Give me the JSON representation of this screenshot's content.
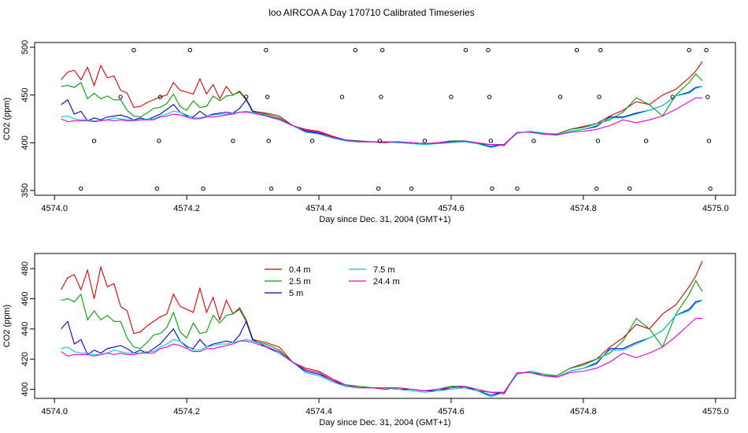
{
  "title": "loo AIRCOA A  Day 170710  Calibrated Timeseries",
  "chart_data": [
    {
      "type": "scatter",
      "xlabel": "Day since Dec. 31, 2004 (GMT+1)",
      "ylabel": "CO2 (ppm)",
      "xlim": [
        4573.97,
        4575.03
      ],
      "ylim": [
        345,
        505
      ],
      "xticks": [
        4574.0,
        4574.2,
        4574.4,
        4574.6,
        4574.8,
        4575.0
      ],
      "xtick_labels": [
        "4574.0",
        "4574.2",
        "4574.4",
        "4574.6",
        "4574.8",
        "4575.0"
      ],
      "yticks": [
        350,
        400,
        450,
        500
      ],
      "ytick_labels": [
        "350",
        "400",
        "450",
        "500"
      ],
      "grid": false,
      "series": [
        {
          "color": "#dd0000",
          "x": [
            4574.01,
            4574.02,
            4574.03,
            4574.04,
            4574.05,
            4574.06,
            4574.07,
            4574.08,
            4574.09,
            4574.1,
            4574.11,
            4574.12,
            4574.13,
            4574.14,
            4574.15,
            4574.16,
            4574.17,
            4574.18,
            4574.19,
            4574.2,
            4574.21,
            4574.22,
            4574.23,
            4574.24,
            4574.25,
            4574.26,
            4574.27,
            4574.28,
            4574.29,
            4574.3,
            4574.32,
            4574.34,
            4574.36,
            4574.38,
            4574.4,
            4574.42,
            4574.44,
            4574.46,
            4574.48,
            4574.5,
            4574.52,
            4574.54,
            4574.56,
            4574.58,
            4574.6,
            4574.62,
            4574.64,
            4574.66,
            4574.68,
            4574.7,
            4574.72,
            4574.74,
            4574.76,
            4574.78,
            4574.8,
            4574.82,
            4574.84,
            4574.86,
            4574.88,
            4574.9,
            4574.92,
            4574.94,
            4574.96,
            4574.97,
            4574.98
          ],
          "y": [
            466,
            474,
            476,
            466,
            479,
            460,
            481,
            468,
            470,
            455,
            452,
            437,
            438,
            442,
            445,
            448,
            450,
            463,
            455,
            453,
            451,
            467,
            451,
            461,
            446,
            459,
            450,
            454,
            446,
            433,
            431,
            428,
            418,
            414,
            412,
            407,
            403,
            402,
            401,
            400,
            401,
            400,
            399,
            400,
            402,
            401,
            399,
            398,
            397,
            411,
            411,
            409,
            409,
            414,
            417,
            420,
            428,
            434,
            443,
            440,
            450,
            456,
            468,
            475,
            485
          ]
        },
        {
          "color": "#00a000",
          "x": [
            4574.01,
            4574.02,
            4574.03,
            4574.04,
            4574.05,
            4574.06,
            4574.07,
            4574.08,
            4574.09,
            4574.1,
            4574.11,
            4574.12,
            4574.13,
            4574.14,
            4574.15,
            4574.16,
            4574.17,
            4574.18,
            4574.19,
            4574.2,
            4574.21,
            4574.22,
            4574.23,
            4574.24,
            4574.25,
            4574.26,
            4574.27,
            4574.28,
            4574.29,
            4574.3,
            4574.32,
            4574.34,
            4574.36,
            4574.38,
            4574.4,
            4574.42,
            4574.44,
            4574.46,
            4574.48,
            4574.5,
            4574.52,
            4574.54,
            4574.56,
            4574.58,
            4574.6,
            4574.62,
            4574.64,
            4574.66,
            4574.68,
            4574.7,
            4574.72,
            4574.74,
            4574.76,
            4574.78,
            4574.8,
            4574.82,
            4574.84,
            4574.86,
            4574.88,
            4574.9,
            4574.92,
            4574.94,
            4574.96,
            4574.97,
            4574.98
          ],
          "y": [
            459,
            460,
            458,
            463,
            446,
            452,
            446,
            449,
            445,
            445,
            434,
            428,
            427,
            431,
            436,
            437,
            441,
            451,
            438,
            434,
            444,
            437,
            438,
            449,
            444,
            449,
            450,
            453,
            445,
            432,
            430,
            426,
            418,
            413,
            411,
            406,
            403,
            402,
            401,
            401,
            401,
            400,
            399,
            400,
            402,
            402,
            399,
            398,
            398,
            411,
            411,
            410,
            409,
            414,
            416,
            420,
            424,
            432,
            447,
            440,
            428,
            450,
            463,
            472,
            465
          ]
        },
        {
          "color": "#0000cc",
          "x": [
            4574.01,
            4574.02,
            4574.03,
            4574.04,
            4574.05,
            4574.06,
            4574.07,
            4574.08,
            4574.09,
            4574.1,
            4574.11,
            4574.12,
            4574.13,
            4574.14,
            4574.15,
            4574.16,
            4574.17,
            4574.18,
            4574.19,
            4574.2,
            4574.21,
            4574.22,
            4574.23,
            4574.24,
            4574.25,
            4574.26,
            4574.27,
            4574.28,
            4574.29,
            4574.3,
            4574.32,
            4574.34,
            4574.36,
            4574.38,
            4574.4,
            4574.42,
            4574.44,
            4574.46,
            4574.48,
            4574.5,
            4574.52,
            4574.54,
            4574.56,
            4574.58,
            4574.6,
            4574.62,
            4574.64,
            4574.66,
            4574.68,
            4574.7,
            4574.72,
            4574.74,
            4574.76,
            4574.78,
            4574.8,
            4574.82,
            4574.84,
            4574.86,
            4574.88,
            4574.9,
            4574.92,
            4574.94,
            4574.96,
            4574.97,
            4574.98
          ],
          "y": [
            440,
            445,
            430,
            433,
            423,
            426,
            424,
            427,
            428,
            429,
            427,
            424,
            426,
            424,
            427,
            430,
            435,
            440,
            432,
            428,
            427,
            433,
            428,
            430,
            431,
            432,
            431,
            436,
            445,
            433,
            428,
            424,
            418,
            412,
            410,
            406,
            402,
            401,
            401,
            401,
            400,
            400,
            399,
            399,
            401,
            402,
            399,
            396,
            398,
            410,
            412,
            410,
            408,
            412,
            414,
            417,
            427,
            427,
            431,
            434,
            439,
            449,
            453,
            458,
            459
          ]
        },
        {
          "color": "#00cccc",
          "x": [
            4574.01,
            4574.02,
            4574.03,
            4574.04,
            4574.05,
            4574.06,
            4574.07,
            4574.08,
            4574.09,
            4574.1,
            4574.11,
            4574.12,
            4574.13,
            4574.14,
            4574.15,
            4574.16,
            4574.17,
            4574.18,
            4574.19,
            4574.2,
            4574.21,
            4574.22,
            4574.23,
            4574.24,
            4574.25,
            4574.26,
            4574.27,
            4574.28,
            4574.29,
            4574.3,
            4574.32,
            4574.34,
            4574.36,
            4574.38,
            4574.4,
            4574.42,
            4574.44,
            4574.46,
            4574.48,
            4574.5,
            4574.52,
            4574.54,
            4574.56,
            4574.58,
            4574.6,
            4574.62,
            4574.64,
            4574.66,
            4574.68,
            4574.7,
            4574.72,
            4574.74,
            4574.76,
            4574.78,
            4574.8,
            4574.82,
            4574.84,
            4574.86,
            4574.88,
            4574.9,
            4574.92,
            4574.94,
            4574.96,
            4574.97,
            4574.98
          ],
          "y": [
            427,
            428,
            425,
            424,
            424,
            423,
            423,
            424,
            426,
            425,
            424,
            424,
            424,
            425,
            425,
            428,
            430,
            433,
            432,
            429,
            426,
            426,
            428,
            429,
            430,
            430,
            431,
            432,
            433,
            432,
            429,
            424,
            418,
            411,
            409,
            405,
            402,
            401,
            401,
            401,
            400,
            399,
            398,
            399,
            400,
            401,
            399,
            395,
            398,
            410,
            412,
            410,
            408,
            412,
            414,
            418,
            426,
            426,
            430,
            434,
            439,
            449,
            452,
            457,
            459
          ]
        },
        {
          "color": "#e000e0",
          "x": [
            4574.01,
            4574.02,
            4574.03,
            4574.04,
            4574.05,
            4574.06,
            4574.07,
            4574.08,
            4574.09,
            4574.1,
            4574.11,
            4574.12,
            4574.13,
            4574.14,
            4574.15,
            4574.16,
            4574.17,
            4574.18,
            4574.19,
            4574.2,
            4574.21,
            4574.22,
            4574.23,
            4574.24,
            4574.25,
            4574.26,
            4574.27,
            4574.28,
            4574.29,
            4574.3,
            4574.32,
            4574.34,
            4574.36,
            4574.38,
            4574.4,
            4574.42,
            4574.44,
            4574.46,
            4574.48,
            4574.5,
            4574.52,
            4574.54,
            4574.56,
            4574.58,
            4574.6,
            4574.62,
            4574.64,
            4574.66,
            4574.68,
            4574.7,
            4574.72,
            4574.74,
            4574.76,
            4574.78,
            4574.8,
            4574.82,
            4574.84,
            4574.86,
            4574.88,
            4574.9,
            4574.92,
            4574.94,
            4574.96,
            4574.97,
            4574.98
          ],
          "y": [
            425,
            422,
            423,
            423,
            423,
            422,
            423,
            424,
            423,
            424,
            423,
            423,
            424,
            424,
            424,
            427,
            428,
            430,
            429,
            427,
            425,
            425,
            427,
            427,
            428,
            429,
            430,
            432,
            432,
            431,
            428,
            425,
            418,
            413,
            411,
            406,
            403,
            401,
            401,
            401,
            401,
            400,
            399,
            400,
            401,
            402,
            400,
            398,
            398,
            411,
            411,
            409,
            408,
            411,
            412,
            414,
            418,
            424,
            421,
            424,
            428,
            435,
            443,
            447,
            447
          ]
        }
      ],
      "calibration_points": {
        "color": "#000000",
        "x": [
          4574.04,
          4574.06,
          4574.1,
          4574.12,
          4574.155,
          4574.158,
          4574.16,
          4574.205,
          4574.225,
          4574.27,
          4574.29,
          4574.32,
          4574.322,
          4574.324,
          4574.328,
          4574.37,
          4574.39,
          4574.435,
          4574.455,
          4574.49,
          4574.492,
          4574.494,
          4574.496,
          4574.54,
          4574.56,
          4574.6,
          4574.622,
          4574.656,
          4574.658,
          4574.66,
          4574.662,
          4574.7,
          4574.725,
          4574.765,
          4574.79,
          4574.82,
          4574.822,
          4574.824,
          4574.826,
          4574.87,
          4574.895,
          4574.935,
          4574.96,
          4574.986,
          4574.988,
          4574.99,
          4574.992
        ],
        "y": [
          352,
          402,
          448,
          497,
          352,
          402,
          448,
          497,
          352,
          402,
          448,
          497,
          448,
          402,
          352,
          352,
          402,
          448,
          497,
          352,
          402,
          448,
          497,
          352,
          402,
          448,
          497,
          497,
          448,
          402,
          352,
          352,
          402,
          448,
          497,
          352,
          402,
          448,
          497,
          352,
          402,
          448,
          497,
          497,
          448,
          402,
          352
        ]
      }
    },
    {
      "type": "line",
      "xlabel": "Day since Dec. 31, 2004 (GMT+1)",
      "ylabel": "CO2 (ppm)",
      "xlim": [
        4573.97,
        4575.03
      ],
      "ylim": [
        394,
        490
      ],
      "xticks": [
        4574.0,
        4574.2,
        4574.4,
        4574.6,
        4574.8,
        4575.0
      ],
      "xtick_labels": [
        "4574.0",
        "4574.2",
        "4574.4",
        "4574.6",
        "4574.8",
        "4575.0"
      ],
      "yticks": [
        400,
        420,
        440,
        460,
        480
      ],
      "ytick_labels": [
        "400",
        "420",
        "440",
        "460",
        "480"
      ],
      "grid": false,
      "legend": "top-left",
      "legend_entries": [
        {
          "name": "0.4 m",
          "color": "#dd0000"
        },
        {
          "name": "2.5 m",
          "color": "#00a000"
        },
        {
          "name": "5 m",
          "color": "#0000cc"
        },
        {
          "name": "7.5 m",
          "color": "#00cccc"
        },
        {
          "name": "24.4 m",
          "color": "#e000e0"
        }
      ],
      "series_ref": "same as chart 1 series, in order: 0.4 m, 2.5 m, 5 m, 7.5 m, 24.4 m"
    }
  ]
}
